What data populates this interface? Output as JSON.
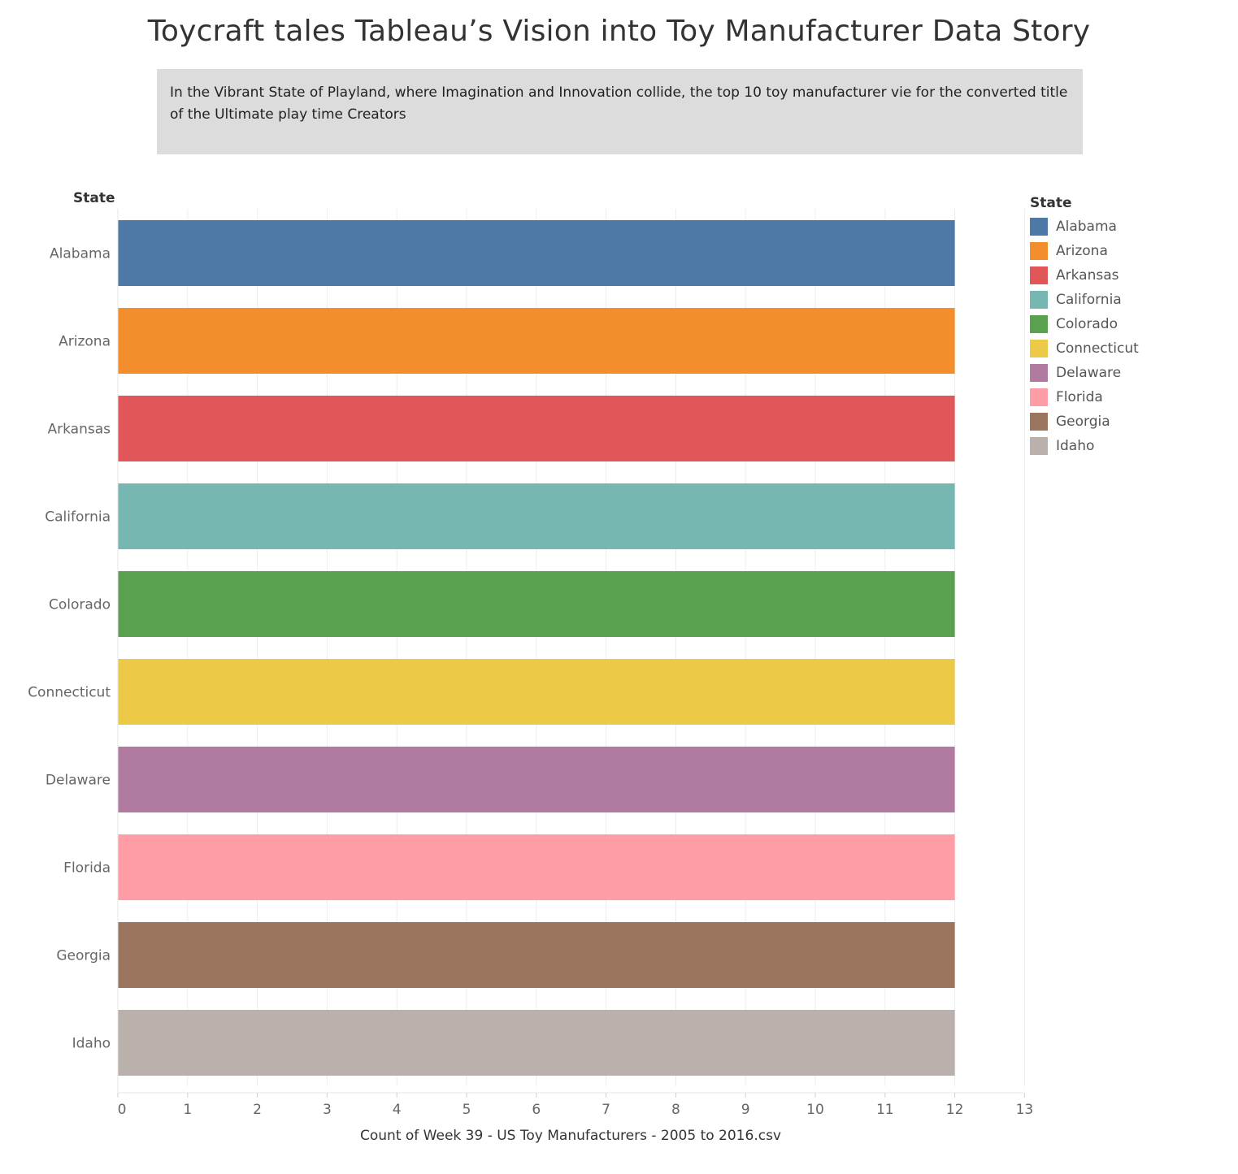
{
  "title": "Toycraft tales Tableau’s Vision into Toy Manufacturer Data Story",
  "description": "In the Vibrant State of  Playland, where Imagination and Innovation collide, the top 10 toy manufacturer vie for the converted title of the Ultimate play time Creators",
  "chart_data": {
    "type": "bar",
    "orientation": "horizontal",
    "y_header": "State",
    "xlabel": "Count of Week 39 - US Toy Manufacturers - 2005 to 2016.csv",
    "categories": [
      "Alabama",
      "Arizona",
      "Arkansas",
      "California",
      "Colorado",
      "Connecticut",
      "Delaware",
      "Florida",
      "Georgia",
      "Idaho"
    ],
    "values": [
      12,
      12,
      12,
      12,
      12,
      12,
      12,
      12,
      12,
      12
    ],
    "colors": [
      "#4e79a7",
      "#f28e2b",
      "#e15759",
      "#76b7b2",
      "#59a14f",
      "#edc948",
      "#b07aa1",
      "#ff9da7",
      "#9c755f",
      "#bab0ac"
    ],
    "xlim": [
      0,
      13
    ],
    "xticks": [
      "0",
      "1",
      "2",
      "3",
      "4",
      "5",
      "6",
      "7",
      "8",
      "9",
      "10",
      "11",
      "12",
      "13"
    ],
    "grid": true,
    "legend": {
      "title": "State",
      "position": "right"
    }
  }
}
